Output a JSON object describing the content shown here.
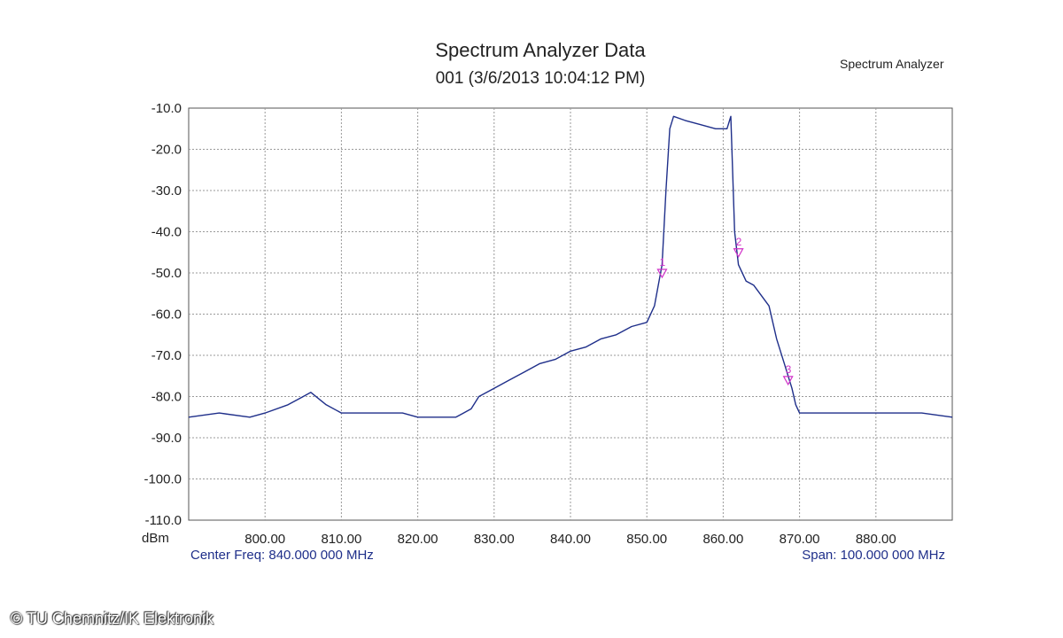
{
  "chart_data": {
    "type": "line",
    "title": "Spectrum Analyzer Data",
    "subtitle": "001 (3/6/2013 10:04:12 PM)",
    "corner_label": "Spectrum Analyzer",
    "ylabel": "dBm",
    "xlabel": "",
    "xlim": [
      790,
      890
    ],
    "ylim": [
      -110,
      -10
    ],
    "grid": true,
    "xticks": [
      "800.00",
      "810.00",
      "820.00",
      "830.00",
      "840.00",
      "850.00",
      "860.00",
      "870.00",
      "880.00"
    ],
    "yticks": [
      "-10.0",
      "-20.0",
      "-30.0",
      "-40.0",
      "-50.0",
      "-60.0",
      "-70.0",
      "-80.0",
      "-90.0",
      "-100.0",
      "-110.0"
    ],
    "center_freq": "Center Freq: 840.000 000 MHz",
    "span": "Span: 100.000 000 MHz",
    "series": [
      {
        "color": "#1f2f8a",
        "x": [
          790,
          794,
          798,
          800,
          803,
          805,
          806,
          808,
          810,
          812,
          815,
          818,
          820,
          822,
          825,
          826,
          827,
          828,
          830,
          832,
          834,
          836,
          838,
          840,
          842,
          844,
          846,
          848,
          850,
          851,
          852,
          852.5,
          853,
          853.5,
          855,
          857,
          859,
          860.5,
          861,
          861.5,
          862,
          863,
          864,
          866,
          867,
          868,
          869,
          869.5,
          870,
          872,
          875,
          878,
          880,
          883,
          886,
          890
        ],
        "y": [
          -85,
          -84,
          -85,
          -84,
          -82,
          -80,
          -79,
          -82,
          -84,
          -84,
          -84,
          -84,
          -85,
          -85,
          -85,
          -84,
          -83,
          -80,
          -78,
          -76,
          -74,
          -72,
          -71,
          -69,
          -68,
          -66,
          -65,
          -63,
          -62,
          -58,
          -48,
          -30,
          -15,
          -12,
          -13,
          -14,
          -15,
          -15,
          -12,
          -40,
          -48,
          -52,
          -53,
          -58,
          -66,
          -72,
          -78,
          -82,
          -84,
          -84,
          -84,
          -84,
          -84,
          -84,
          -84,
          -85
        ]
      }
    ],
    "markers": [
      {
        "label": "1",
        "x": 852,
        "y": -50
      },
      {
        "label": "2",
        "x": 862,
        "y": -45
      },
      {
        "label": "3",
        "x": 868.5,
        "y": -76
      }
    ]
  },
  "copyright": "© TU Chemnitz/IK Elektronik"
}
